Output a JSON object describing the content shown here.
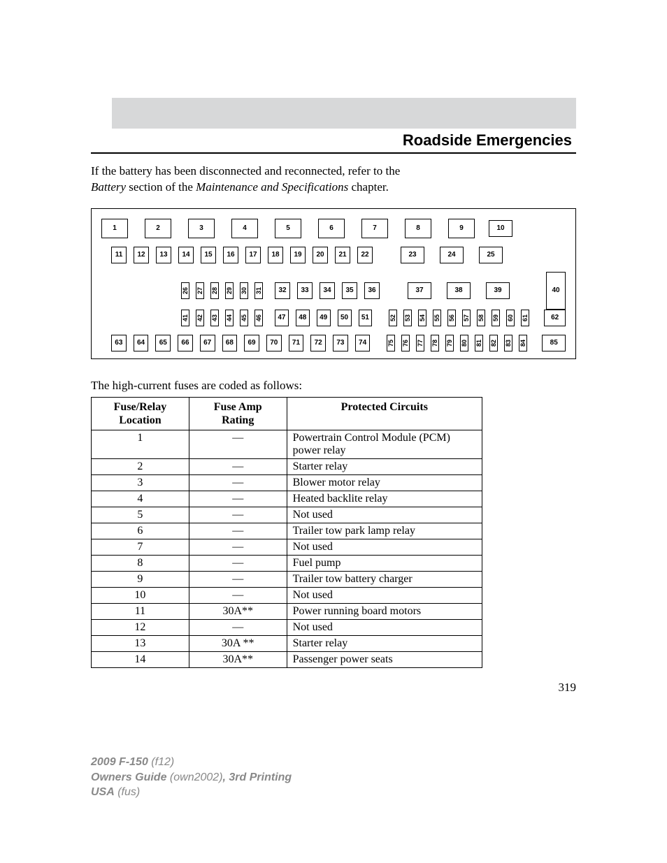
{
  "header": {
    "section_title": "Roadside Emergencies"
  },
  "intro": {
    "line1_a": "If the battery has been disconnected and reconnected, refer to the",
    "line2_i1": "Battery",
    "line2_mid": " section of the ",
    "line2_i2": "Maintenance and Specifications",
    "line2_end": " chapter."
  },
  "diagram": {
    "row1_big": [
      "1",
      "2",
      "3",
      "4",
      "5",
      "6",
      "7",
      "8",
      "9"
    ],
    "row1_right": "10",
    "row2a": [
      "11",
      "12",
      "13",
      "14",
      "15",
      "16",
      "17",
      "18",
      "19",
      "20",
      "21",
      "22"
    ],
    "row2b": [
      "23",
      "24",
      "25"
    ],
    "row3_tall_left": [
      "26",
      "27",
      "28",
      "29",
      "30",
      "31"
    ],
    "row3_mid": [
      "32",
      "33",
      "34",
      "35",
      "36"
    ],
    "row3_right": [
      "37",
      "38",
      "39"
    ],
    "right40": "40",
    "row4_tall_left": [
      "41",
      "42",
      "43",
      "44",
      "45",
      "46"
    ],
    "row4_mid": [
      "47",
      "48",
      "49",
      "50",
      "51"
    ],
    "row4_tall_right": [
      "52",
      "53",
      "54",
      "55",
      "56",
      "57",
      "58",
      "59",
      "60",
      "61"
    ],
    "row4_end": "62",
    "row5_left": [
      "63",
      "64",
      "65",
      "66",
      "67",
      "68",
      "69",
      "70",
      "71",
      "72",
      "73",
      "74"
    ],
    "row5_tall": [
      "75",
      "76",
      "77",
      "78",
      "79",
      "80",
      "81",
      "82",
      "83",
      "84"
    ],
    "row5_end": "85"
  },
  "table": {
    "intro": "The high-current fuses are coded as follows:",
    "headers": {
      "loc_l1": "Fuse/Relay",
      "loc_l2": "Location",
      "amp_l1": "Fuse Amp",
      "amp_l2": "Rating",
      "circ": "Protected Circuits"
    },
    "rows": [
      {
        "loc": "1",
        "amp": "—",
        "circ": "Powertrain Control Module (PCM) power relay"
      },
      {
        "loc": "2",
        "amp": "—",
        "circ": "Starter relay"
      },
      {
        "loc": "3",
        "amp": "—",
        "circ": "Blower motor relay"
      },
      {
        "loc": "4",
        "amp": "—",
        "circ": "Heated backlite relay"
      },
      {
        "loc": "5",
        "amp": "—",
        "circ": "Not used"
      },
      {
        "loc": "6",
        "amp": "—",
        "circ": "Trailer tow park lamp relay"
      },
      {
        "loc": "7",
        "amp": "—",
        "circ": "Not used"
      },
      {
        "loc": "8",
        "amp": "—",
        "circ": "Fuel pump"
      },
      {
        "loc": "9",
        "amp": "—",
        "circ": "Trailer tow battery charger"
      },
      {
        "loc": "10",
        "amp": "—",
        "circ": "Not used"
      },
      {
        "loc": "11",
        "amp": "30A**",
        "circ": "Power running board motors"
      },
      {
        "loc": "12",
        "amp": "—",
        "circ": "Not used"
      },
      {
        "loc": "13",
        "amp": "30A **",
        "circ": "Starter relay"
      },
      {
        "loc": "14",
        "amp": "30A**",
        "circ": "Passenger power seats"
      }
    ]
  },
  "page_number": "319",
  "footer": {
    "l1_b": "2009 F-150",
    "l1_i": " (f12)",
    "l2_b1": "Owners Guide",
    "l2_i1": " (own2002)",
    "l2_b2": ", 3rd Printing",
    "l3_b": "USA",
    "l3_i": " (fus)"
  },
  "style": {
    "band_bg": "#d7d8d9",
    "footer_color": "#888888"
  }
}
